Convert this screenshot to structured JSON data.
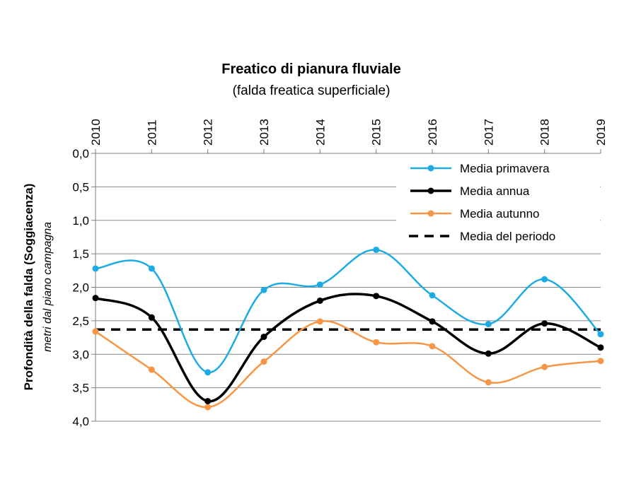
{
  "chart_data": {
    "type": "line",
    "title": "Freatico di pianura  fluviale",
    "subtitle": "(falda freatica superficiale)",
    "ylabel": "Profondità della falda (Soggiacenza)",
    "ylabel_sub": "metri dal piano campagna",
    "xlabel": "",
    "x": [
      "2010",
      "2011",
      "2012",
      "2013",
      "2014",
      "2015",
      "2016",
      "2017",
      "2018",
      "2019"
    ],
    "ylim": [
      0,
      4
    ],
    "y_inverted": true,
    "y_ticks": [
      "0,0",
      "0,5",
      "1,0",
      "1,5",
      "2,0",
      "2,5",
      "3,0",
      "3,5",
      "4,0"
    ],
    "grid": true,
    "legend_position": "top-right",
    "series": [
      {
        "name": "Media primavera",
        "color": "#1cabe2",
        "style": "solid-markers",
        "values": [
          1.72,
          1.72,
          3.27,
          2.04,
          1.96,
          1.44,
          2.12,
          2.55,
          1.88,
          2.7
        ]
      },
      {
        "name": "Media annua",
        "color": "#000000",
        "style": "solid-markers",
        "values": [
          2.16,
          2.45,
          3.7,
          2.74,
          2.2,
          2.13,
          2.51,
          2.99,
          2.54,
          2.9
        ]
      },
      {
        "name": "Media autunno",
        "color": "#f79646",
        "style": "solid-markers",
        "values": [
          2.66,
          3.23,
          3.79,
          3.11,
          2.51,
          2.82,
          2.88,
          3.42,
          3.19,
          3.1
        ]
      },
      {
        "name": "Media del periodo",
        "color": "#000000",
        "style": "dashed",
        "values": [
          2.63,
          2.63,
          2.63,
          2.63,
          2.63,
          2.63,
          2.63,
          2.63,
          2.63,
          2.63
        ]
      }
    ]
  }
}
